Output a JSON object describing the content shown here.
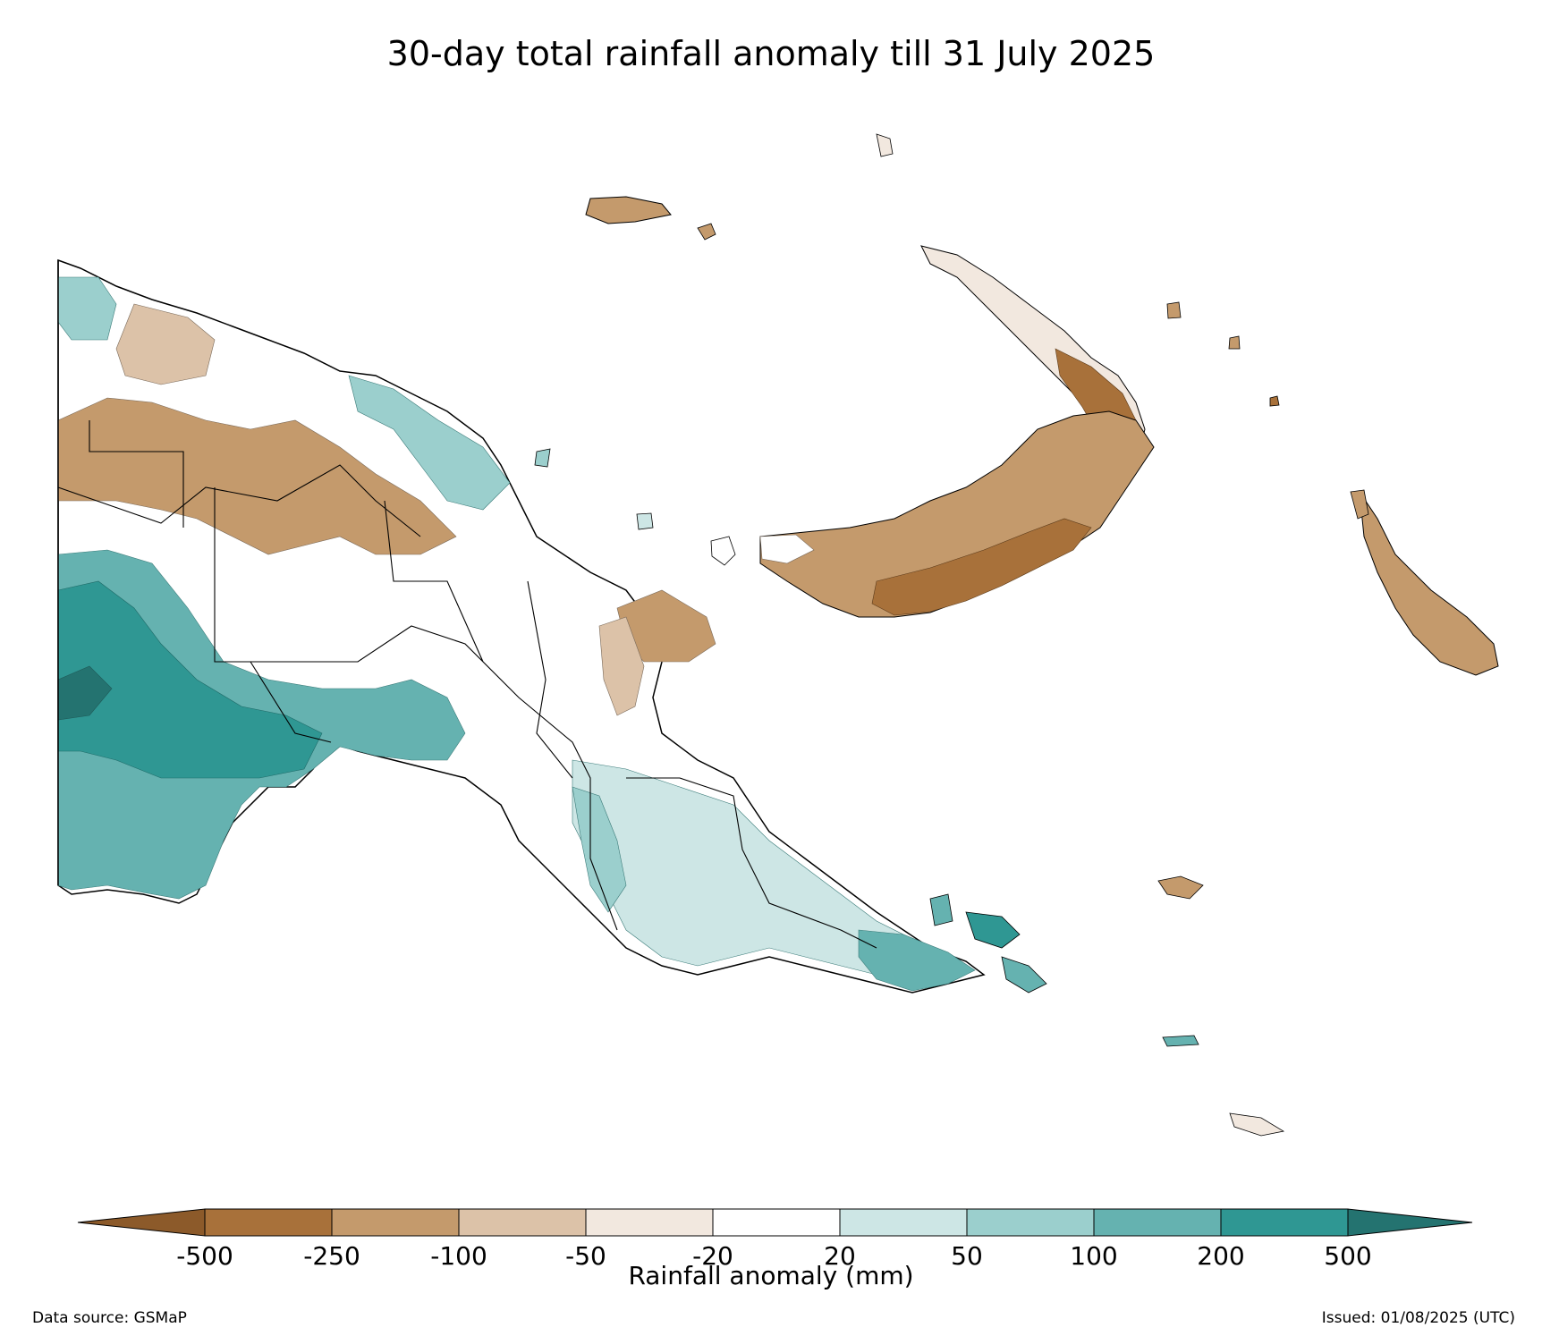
{
  "title": "30-day total rainfall anomaly till 31 July 2025",
  "colorbar": {
    "label": "Rainfall anomaly (mm)",
    "ticks": [
      "-500",
      "-250",
      "-100",
      "-50",
      "-20",
      "20",
      "50",
      "100",
      "200",
      "500"
    ],
    "extend": "both",
    "colors": {
      "under": "#8c5a2a",
      "bins": [
        "#a8713a",
        "#c49a6c",
        "#dcc2a8",
        "#f2e8df",
        "#ffffff",
        "#cde6e5",
        "#9bcfcd",
        "#65b2b0",
        "#2f9793"
      ],
      "over": "#247370"
    }
  },
  "source": "Data source: GSMaP",
  "issued": "Issued: 01/08/2025 (UTC)"
}
